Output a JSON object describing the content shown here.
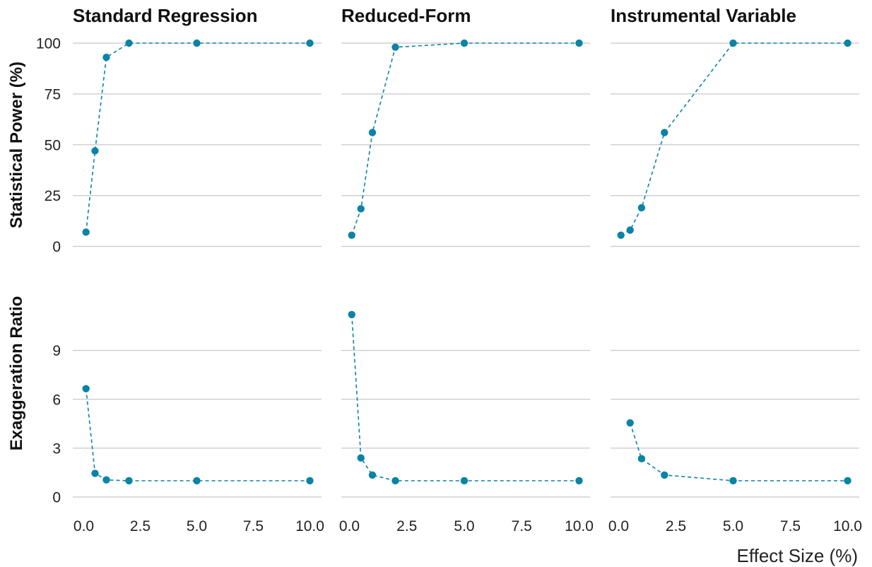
{
  "figure": {
    "x_axis_title": "Effect Size (%)",
    "x_ticks": [
      0,
      2.5,
      5,
      7.5,
      10
    ],
    "x_tick_labels": [
      "0.0",
      "2.5",
      "5.0",
      "7.5",
      "10.0"
    ],
    "colors": {
      "series": "#0a84a6",
      "grid": "#c8c8c8",
      "text": "#111111"
    }
  },
  "chart_data": [
    {
      "type": "line",
      "panel": "Standard Regression",
      "title": "Standard Regression",
      "ylabel": "Statistical Power (%)",
      "xlabel": "",
      "grid": true,
      "ylim": [
        0,
        100
      ],
      "y_ticks": [
        0,
        25,
        50,
        75,
        100
      ],
      "y_tick_labels": [
        "0",
        "25",
        "50",
        "75",
        "100"
      ],
      "x": [
        0.1,
        0.5,
        1,
        2,
        5,
        10
      ],
      "values": [
        7,
        47,
        93,
        100,
        100,
        100
      ]
    },
    {
      "type": "line",
      "panel": "Reduced-Form",
      "title": "Reduced-Form",
      "ylabel": "Statistical Power (%)",
      "xlabel": "",
      "grid": true,
      "ylim": [
        0,
        100
      ],
      "y_ticks": [
        0,
        25,
        50,
        75,
        100
      ],
      "y_tick_labels": [
        "0",
        "25",
        "50",
        "75",
        "100"
      ],
      "x": [
        0.1,
        0.5,
        1,
        2,
        5,
        10
      ],
      "values": [
        5.5,
        18.5,
        56,
        98,
        100,
        100
      ]
    },
    {
      "type": "line",
      "panel": "Instrumental Variable",
      "title": "Instrumental Variable",
      "ylabel": "Statistical Power (%)",
      "xlabel": "",
      "grid": true,
      "ylim": [
        0,
        100
      ],
      "y_ticks": [
        0,
        25,
        50,
        75,
        100
      ],
      "y_tick_labels": [
        "0",
        "25",
        "50",
        "75",
        "100"
      ],
      "x": [
        0.1,
        0.5,
        1,
        2,
        5,
        10
      ],
      "values": [
        5.5,
        8,
        19,
        56,
        100,
        100
      ]
    },
    {
      "type": "line",
      "panel": "Standard Regression",
      "title": "",
      "ylabel": "Exaggeration Ratio",
      "xlabel": "Effect Size (%)",
      "grid": true,
      "ylim": [
        0,
        12.5
      ],
      "y_ticks": [
        0,
        3,
        6,
        9
      ],
      "y_tick_labels": [
        "0",
        "3",
        "6",
        "9"
      ],
      "x": [
        0.1,
        0.5,
        1,
        2,
        5,
        10
      ],
      "values": [
        6.65,
        1.45,
        1.05,
        1.0,
        1.0,
        1.0
      ]
    },
    {
      "type": "line",
      "panel": "Reduced-Form",
      "title": "",
      "ylabel": "Exaggeration Ratio",
      "xlabel": "Effect Size (%)",
      "grid": true,
      "ylim": [
        0,
        12.5
      ],
      "y_ticks": [
        0,
        3,
        6,
        9
      ],
      "y_tick_labels": [
        "0",
        "3",
        "6",
        "9"
      ],
      "x": [
        0.1,
        0.5,
        1,
        2,
        5,
        10
      ],
      "values": [
        11.2,
        2.4,
        1.35,
        1.0,
        1.0,
        1.0
      ]
    },
    {
      "type": "line",
      "panel": "Instrumental Variable",
      "title": "",
      "ylabel": "Exaggeration Ratio",
      "xlabel": "Effect Size (%)",
      "grid": true,
      "ylim": [
        0,
        12.5
      ],
      "y_ticks": [
        0,
        3,
        6,
        9
      ],
      "y_tick_labels": [
        "0",
        "3",
        "6",
        "9"
      ],
      "x": [
        0.5,
        1,
        2,
        5,
        10
      ],
      "values": [
        4.55,
        2.35,
        1.35,
        1.0,
        1.0
      ]
    }
  ]
}
